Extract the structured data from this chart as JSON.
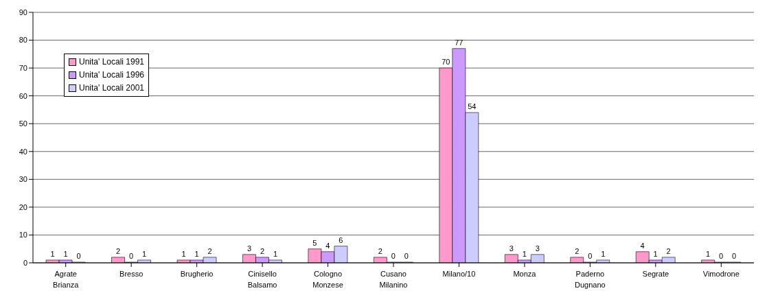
{
  "chart_data": {
    "type": "bar",
    "categories": [
      "Agrate Brianza",
      "Bresso",
      "Brugherio",
      "Cinisello Balsamo",
      "Cologno Monzese",
      "Cusano Milanino",
      "Milano/10",
      "Monza",
      "Paderno Dugnano",
      "Segrate",
      "Vimodrone"
    ],
    "series": [
      {
        "name": "Unita' Locali 1991",
        "color": "#ff99cc",
        "values": [
          1,
          2,
          1,
          3,
          5,
          2,
          70,
          3,
          2,
          4,
          1
        ]
      },
      {
        "name": "Unita' Locali 1996",
        "color": "#cc99ff",
        "values": [
          1,
          0,
          1,
          2,
          4,
          0,
          77,
          1,
          0,
          1,
          0
        ]
      },
      {
        "name": "Unita' Locali 2001",
        "color": "#ccccff",
        "values": [
          0,
          1,
          2,
          1,
          6,
          0,
          54,
          3,
          1,
          2,
          0
        ]
      }
    ],
    "ylim": [
      0,
      90
    ],
    "yticks": [
      0,
      10,
      20,
      30,
      40,
      50,
      60,
      70,
      80,
      90
    ],
    "grid": "y",
    "legend": "top left",
    "data_labels": true
  }
}
